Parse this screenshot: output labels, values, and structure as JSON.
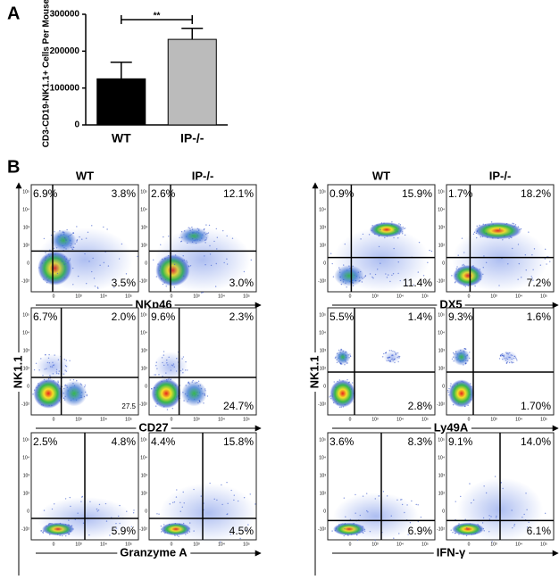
{
  "panel_labels": [
    "A",
    "B"
  ],
  "chart_data": {
    "type": "bar",
    "ylabel": "CD3-CD19-NK1.1+ Cells Per Mouse",
    "categories": [
      "WT",
      "IP-/-"
    ],
    "values": [
      125000,
      232000
    ],
    "errors": [
      45000,
      30000
    ],
    "colors": [
      "#000000",
      "#bbbbbb"
    ],
    "ylim": [
      0,
      300000
    ],
    "yticks": [
      0,
      100000,
      200000,
      300000
    ],
    "annotation": "**"
  },
  "flow": {
    "y_tick_labels": [
      "10⁵",
      "10⁴",
      "10³",
      "10²",
      "0",
      "-10²"
    ],
    "x_tick_labels": [
      "0",
      "10³",
      "10⁴",
      "10⁵"
    ],
    "groups": [
      {
        "columns": [
          "WT",
          "IP-/-"
        ],
        "ylabel": "NK1.1",
        "rows": [
          {
            "xlabel": "NKp46",
            "plots": [
              [
                "6.9%",
                "3.8%",
                "3.5%"
              ],
              [
                "2.6%",
                "12.1%",
                "3.0%"
              ]
            ]
          },
          {
            "xlabel": "CD27",
            "plots": [
              [
                "6.7%",
                "2.0%",
                "27.5"
              ],
              [
                "9.6%",
                "2.3%",
                "24.7%"
              ]
            ]
          },
          {
            "xlabel": "Granzyme A",
            "plots": [
              [
                "2.5%",
                "4.8%",
                "5.9%"
              ],
              [
                "4.4%",
                "15.8%",
                "4.5%"
              ]
            ]
          }
        ]
      },
      {
        "columns": [
          "WT",
          "IP-/-"
        ],
        "ylabel": "NK1.1",
        "rows": [
          {
            "xlabel": "DX5",
            "plots": [
              [
                "0.9%",
                "15.9%",
                "11.4%"
              ],
              [
                "1.7%",
                "18.2%",
                "7.2%"
              ]
            ]
          },
          {
            "xlabel": "Ly49A",
            "plots": [
              [
                "5.5%",
                "1.4%",
                "2.8%"
              ],
              [
                "9.3%",
                "1.6%",
                "1.70%"
              ]
            ]
          },
          {
            "xlabel": "IFN-γ",
            "plots": [
              [
                "3.6%",
                "8.3%",
                "6.9%"
              ],
              [
                "9.1%",
                "14.0%",
                "6.1%"
              ]
            ]
          }
        ]
      }
    ]
  }
}
